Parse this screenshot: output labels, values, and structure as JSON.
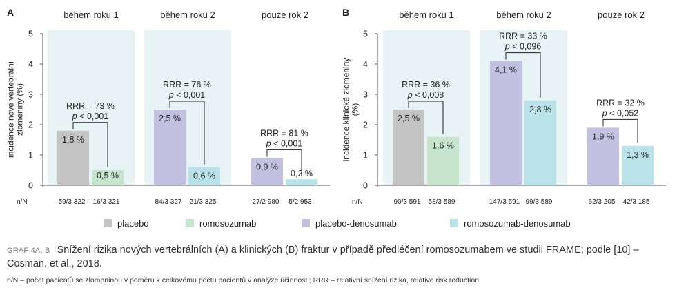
{
  "colors": {
    "placebo": "#c4c4c4",
    "romosozumab": "#c6e5cc",
    "placebo-denosumab": "#c3c1e2",
    "romosozumab-denosumab": "#b9e3e8",
    "band": "#e7f3f4"
  },
  "n_label": "n/N",
  "legend": [
    {
      "key": "placebo",
      "label": "placebo"
    },
    {
      "key": "romosozumab",
      "label": "romosozumab"
    },
    {
      "key": "placebo-denosumab",
      "label": "placebo-denosumab"
    },
    {
      "key": "romosozumab-denosumab",
      "label": "romosozumab-denosumab"
    }
  ],
  "caption": {
    "label": "GRAF 4A, B",
    "text": "Snížení rizika nových vertebrálních (A) a klinických (B) fraktur v případě předléčení romosozumabem ve studii FRAME; podle [10] – Cosman, et al., 2018."
  },
  "footnote": "n/N – počet pacientů se zlomeninou v poměru k celkovému počtu pacientů v analýze účinnosti; RRR – relativní snížení rizika, relative risk reduction",
  "chart_data": [
    {
      "type": "bar",
      "panel": "A",
      "ylabel": "incidence nové vertebrální zlomeniny (%)",
      "ylim": [
        0,
        5
      ],
      "yticks": [
        0,
        1,
        2,
        3,
        4,
        5
      ],
      "groups": [
        {
          "title": "během roku 1",
          "shaded": true,
          "bars": [
            {
              "series": "placebo",
              "value": 1.8,
              "label": "1,8 %",
              "n": "59/3 322"
            },
            {
              "series": "romosozumab",
              "value": 0.5,
              "label": "0,5 %",
              "n": "16/3 321"
            }
          ],
          "rrr": "RRR = 73 %",
          "p": "p < 0,001"
        },
        {
          "title": "během roku 2",
          "shaded": true,
          "bars": [
            {
              "series": "placebo-denosumab",
              "value": 2.5,
              "label": "2,5 %",
              "n": "84/3 327"
            },
            {
              "series": "romosozumab-denosumab",
              "value": 0.6,
              "label": "0,6 %",
              "n": "21/3 325"
            }
          ],
          "rrr": "RRR = 76 %",
          "p": "p < 0,001"
        },
        {
          "title": "pouze rok 2",
          "shaded": false,
          "bars": [
            {
              "series": "placebo-denosumab",
              "value": 0.9,
              "label": "0,9 %",
              "n": "27/2 980"
            },
            {
              "series": "romosozumab-denosumab",
              "value": 0.2,
              "label": "0,2 %",
              "n": "5/2 953"
            }
          ],
          "rrr": "RRR = 81 %",
          "p": "p < 0,001"
        }
      ]
    },
    {
      "type": "bar",
      "panel": "B",
      "ylabel": "incidence klinické zlomeniny (%)",
      "ylim": [
        0,
        5
      ],
      "yticks": [
        0,
        1,
        2,
        3,
        4,
        5
      ],
      "groups": [
        {
          "title": "během roku 1",
          "shaded": true,
          "bars": [
            {
              "series": "placebo",
              "value": 2.5,
              "label": "2,5 %",
              "n": "90/3 591"
            },
            {
              "series": "romosozumab",
              "value": 1.6,
              "label": "1,6 %",
              "n": "58/3 589"
            }
          ],
          "rrr": "RRR = 36 %",
          "p": "p < 0,008"
        },
        {
          "title": "během roku 2",
          "shaded": true,
          "bars": [
            {
              "series": "placebo-denosumab",
              "value": 4.1,
              "label": "4,1 %",
              "n": "147/3 591"
            },
            {
              "series": "romosozumab-denosumab",
              "value": 2.8,
              "label": "2,8 %",
              "n": "99/3 589"
            }
          ],
          "rrr": "RRR = 33 %",
          "p": "p < 0,096"
        },
        {
          "title": "pouze rok 2",
          "shaded": false,
          "bars": [
            {
              "series": "placebo-denosumab",
              "value": 1.9,
              "label": "1,9 %",
              "n": "62/3 205"
            },
            {
              "series": "romosozumab-denosumab",
              "value": 1.3,
              "label": "1,3 %",
              "n": "42/3 185"
            }
          ],
          "rrr": "RRR = 32 %",
          "p": "p < 0,052"
        }
      ]
    }
  ]
}
